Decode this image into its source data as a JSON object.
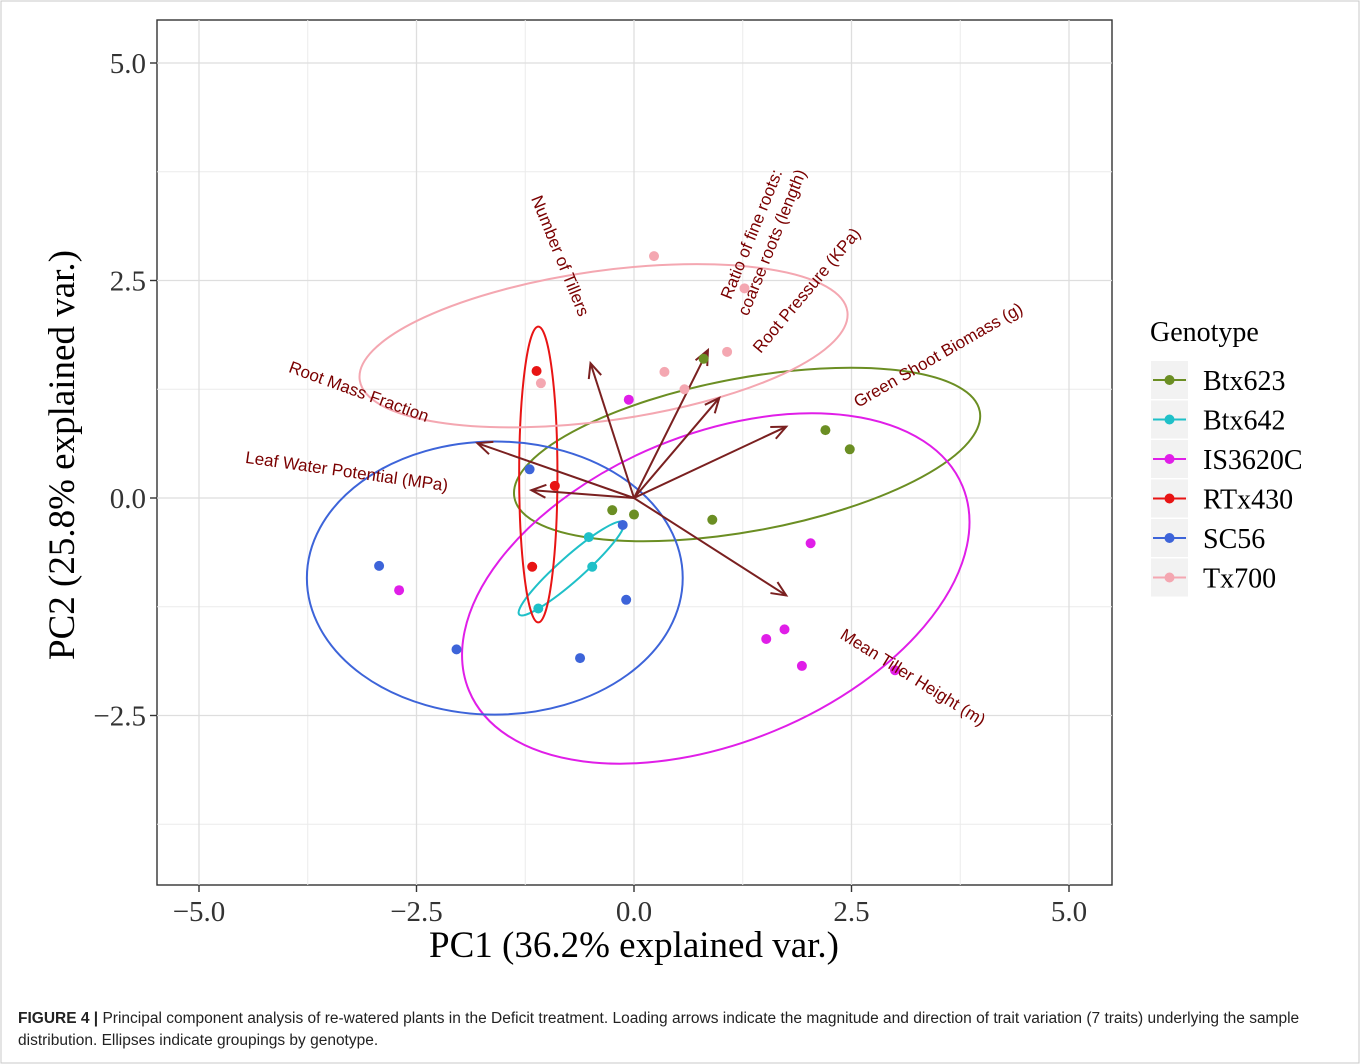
{
  "chart_data": {
    "type": "scatter",
    "xlabel": "PC1 (36.2% explained var.)",
    "ylabel": "PC2 (25.8% explained var.)",
    "xlim": [
      -5.5,
      5.5
    ],
    "ylim": [
      -4.4,
      5.4
    ],
    "x_ticks": [
      -5.0,
      -2.5,
      0.0,
      2.5,
      5.0
    ],
    "y_ticks": [
      -2.5,
      0.0,
      2.5,
      5.0
    ],
    "x_tick_labels": [
      "−5.0",
      "−2.5",
      "0.0",
      "2.5",
      "5.0"
    ],
    "y_tick_labels": [
      "−2.5",
      "0.0",
      "2.5",
      "5.0"
    ],
    "grid": true,
    "legend": {
      "title": "Genotype",
      "placement": "right"
    },
    "series": [
      {
        "name": "Btx623",
        "color": "#6b8e23",
        "points": [
          [
            -0.25,
            -0.14
          ],
          [
            0.0,
            -0.19
          ],
          [
            0.9,
            -0.25
          ],
          [
            0.8,
            1.6
          ],
          [
            2.2,
            0.78
          ],
          [
            2.48,
            0.56
          ]
        ],
        "ellipse": {
          "cx": 1.3,
          "cy": 0.5,
          "rx": 2.72,
          "ry": 0.88,
          "angle_deg": 10.5
        }
      },
      {
        "name": "Btx642",
        "color": "#1fc0c8",
        "points": [
          [
            -0.52,
            -0.45
          ],
          [
            -0.48,
            -0.79
          ],
          [
            -1.1,
            -1.27
          ]
        ],
        "ellipse": {
          "cx": -0.72,
          "cy": -0.81,
          "rx": 0.8,
          "ry": 0.14,
          "angle_deg": 41.5
        }
      },
      {
        "name": "IS3620C",
        "color": "#e01ee8",
        "points": [
          [
            -0.06,
            1.13
          ],
          [
            -2.7,
            -1.06
          ],
          [
            2.03,
            -0.52
          ],
          [
            1.52,
            -1.62
          ],
          [
            1.73,
            -1.51
          ],
          [
            1.93,
            -1.93
          ],
          [
            3.0,
            -1.98
          ]
        ],
        "ellipse": {
          "cx": 0.94,
          "cy": -1.04,
          "rx": 3.07,
          "ry": 1.77,
          "angle_deg": 22.5
        }
      },
      {
        "name": "RTx430",
        "color": "#e81414",
        "points": [
          [
            -1.12,
            1.46
          ],
          [
            -0.91,
            0.14
          ],
          [
            -1.17,
            -0.79
          ]
        ],
        "ellipse": {
          "cx": -1.1,
          "cy": 0.27,
          "rx": 1.7,
          "ry": 0.22,
          "angle_deg": 90
        }
      },
      {
        "name": "SC56",
        "color": "#3d64d9",
        "points": [
          [
            -1.2,
            0.33
          ],
          [
            -0.13,
            -0.31
          ],
          [
            -0.09,
            -1.17
          ],
          [
            -2.93,
            -0.78
          ],
          [
            -2.04,
            -1.74
          ],
          [
            -0.62,
            -1.84
          ]
        ],
        "ellipse": {
          "cx": -1.6,
          "cy": -0.92,
          "rx": 2.16,
          "ry": 1.57,
          "angle_deg": 0
        }
      },
      {
        "name": "Tx700",
        "color": "#f4a7b1",
        "points": [
          [
            0.23,
            2.78
          ],
          [
            1.27,
            2.41
          ],
          [
            -1.07,
            1.32
          ],
          [
            0.35,
            1.45
          ],
          [
            1.07,
            1.68
          ],
          [
            0.58,
            1.25
          ]
        ],
        "ellipse": {
          "cx": -0.35,
          "cy": 1.75,
          "rx": 2.83,
          "ry": 0.86,
          "angle_deg": 8
        }
      }
    ],
    "loadings": [
      {
        "label": "Number of Tillers",
        "x": -0.5,
        "y": 1.55
      },
      {
        "label": "Ratio of fine roots:\ncoarse roots (length)",
        "x": 0.85,
        "y": 1.7
      },
      {
        "label": "Root Pressure (KPa)",
        "x": 0.98,
        "y": 1.15
      },
      {
        "label": "Green Shoot Biomass (g)",
        "x": 1.75,
        "y": 0.82
      },
      {
        "label": "Root Mass Fraction",
        "x": -1.8,
        "y": 0.63
      },
      {
        "label": "Leaf Water Potential (MPa)",
        "x": -1.18,
        "y": 0.09
      },
      {
        "label": "Mean Tiller Height (m)",
        "x": 1.75,
        "y": -1.12
      }
    ]
  },
  "caption": {
    "label": "FIGURE 4 |",
    "text": " Principal component analysis of re-watered plants in the Deficit treatment. Loading arrows indicate the magnitude and direction of trait variation (7 traits) underlying the sample distribution. Ellipses indicate groupings by genotype."
  }
}
